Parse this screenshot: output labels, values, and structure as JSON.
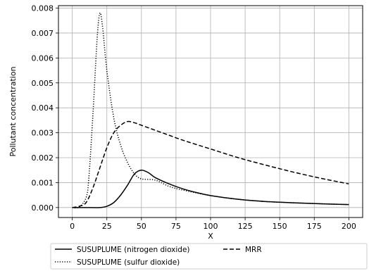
{
  "chart_data": {
    "type": "line",
    "xlabel": "X",
    "ylabel": "Pollutant concentration",
    "xlim": [
      -10,
      210
    ],
    "ylim": [
      -0.0004,
      0.0081
    ],
    "xticks": [
      0,
      25,
      50,
      75,
      100,
      125,
      150,
      175,
      200
    ],
    "xtick_labels": [
      "0",
      "25",
      "50",
      "75",
      "100",
      "125",
      "150",
      "175",
      "200"
    ],
    "yticks": [
      0.0,
      0.001,
      0.002,
      0.003,
      0.004,
      0.005,
      0.006,
      0.007,
      0.008
    ],
    "ytick_labels": [
      "0.000",
      "0.001",
      "0.002",
      "0.003",
      "0.004",
      "0.005",
      "0.006",
      "0.007",
      "0.008"
    ],
    "grid": true,
    "legend_position": "bottom",
    "series": [
      {
        "name": "SUSUPLUME (nitrogen dioxide)",
        "style": "solid",
        "color": "#000000",
        "x": [
          0,
          10,
          20,
          25,
          30,
          35,
          40,
          45,
          50,
          55,
          60,
          70,
          80,
          90,
          100,
          120,
          140,
          160,
          180,
          200
        ],
        "y": [
          0.0,
          0.0,
          0.0,
          5e-05,
          0.0002,
          0.0005,
          0.0009,
          0.00135,
          0.0015,
          0.0014,
          0.0012,
          0.00095,
          0.00075,
          0.0006,
          0.00048,
          0.00033,
          0.00024,
          0.00019,
          0.00015,
          0.00012
        ]
      },
      {
        "name": "MRR",
        "style": "dashed",
        "color": "#000000",
        "x": [
          0,
          5,
          10,
          15,
          20,
          25,
          30,
          35,
          40,
          45,
          50,
          60,
          70,
          80,
          100,
          120,
          140,
          160,
          180,
          200
        ],
        "y": [
          0.0,
          5e-05,
          0.0002,
          0.0008,
          0.0016,
          0.0024,
          0.003,
          0.0033,
          0.00345,
          0.0034,
          0.0033,
          0.0031,
          0.0029,
          0.0027,
          0.00235,
          0.002,
          0.0017,
          0.00142,
          0.00117,
          0.00095
        ]
      },
      {
        "name": "SUSUPLUME (sulfur dioxide)",
        "style": "dotted",
        "color": "#000000",
        "x": [
          0,
          5,
          10,
          12,
          15,
          18,
          20,
          22,
          25,
          30,
          35,
          40,
          45,
          50,
          60,
          70,
          80,
          100,
          120,
          140,
          160,
          180,
          200
        ],
        "y": [
          0.0,
          2e-05,
          0.0004,
          0.0012,
          0.0038,
          0.0068,
          0.0078,
          0.0072,
          0.0055,
          0.0036,
          0.0025,
          0.0018,
          0.00135,
          0.00115,
          0.0011,
          0.00085,
          0.0007,
          0.00048,
          0.00033,
          0.00024,
          0.00019,
          0.00015,
          0.00012
        ]
      }
    ]
  }
}
